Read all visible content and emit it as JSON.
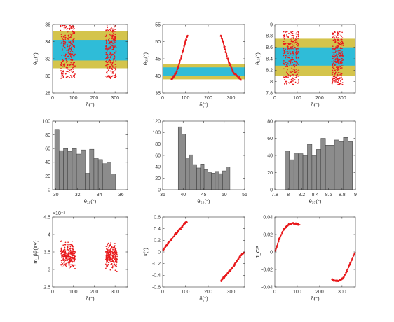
{
  "chart_data": [
    {
      "id": "p11",
      "type": "scatter",
      "xlabel": "δ(°)",
      "ylabel": "θ₁₂(°)",
      "xlim": [
        0,
        360
      ],
      "ylim": [
        28,
        36
      ],
      "xticks": [
        "0",
        "100",
        "200",
        "300"
      ],
      "yticks": [
        "28",
        "30",
        "32",
        "34",
        "36"
      ],
      "bands": [
        {
          "range": [
            30.9,
            35.2
          ],
          "color": "#d4c44c"
        },
        {
          "range": [
            31.8,
            34.2
          ],
          "color": "#2fbcd8"
        }
      ],
      "clusters": [
        {
          "x": [
            38,
            108
          ],
          "y": [
            29.7,
            36.4
          ]
        },
        {
          "x": [
            255,
            305
          ],
          "y": [
            29.7,
            36.4
          ]
        }
      ],
      "marker_color": "#e8191c"
    },
    {
      "id": "p12",
      "type": "scatter",
      "xlabel": "δ(°)",
      "ylabel": "θ₂₃(°)",
      "xlim": [
        0,
        360
      ],
      "ylim": [
        35,
        55
      ],
      "xticks": [
        "0",
        "100",
        "200",
        "300"
      ],
      "yticks": [
        "35",
        "40",
        "45",
        "50",
        "55"
      ],
      "bands": [
        {
          "range": [
            39.0,
            43.5
          ],
          "color": "#d4c44c"
        },
        {
          "range": [
            40.0,
            42.5
          ],
          "color": "#2fbcd8"
        }
      ],
      "curves": [
        {
          "x": [
            38,
            60,
            80,
            100,
            110
          ],
          "y": [
            38.8,
            41,
            45,
            50,
            51.8
          ]
        },
        {
          "x": [
            255,
            265,
            285,
            310,
            345
          ],
          "y": [
            51.8,
            50,
            45,
            41,
            38.8
          ]
        }
      ],
      "marker_color": "#e8191c"
    },
    {
      "id": "p13",
      "type": "scatter",
      "xlabel": "δ(°)",
      "ylabel": "θ₁₃(°)",
      "xlim": [
        0,
        360
      ],
      "ylim": [
        7.8,
        9.0
      ],
      "xticks": [
        "0",
        "100",
        "200",
        "300"
      ],
      "yticks": [
        "7.8",
        "8",
        "8.2",
        "8.4",
        "8.6",
        "8.8",
        "9"
      ],
      "bands": [
        {
          "range": [
            8.1,
            8.75
          ],
          "color": "#d4c44c"
        },
        {
          "range": [
            8.28,
            8.6
          ],
          "color": "#2fbcd8"
        }
      ],
      "clusters": [
        {
          "x": [
            38,
            108
          ],
          "y": [
            7.95,
            8.88
          ]
        },
        {
          "x": [
            255,
            305
          ],
          "y": [
            7.95,
            8.88
          ]
        }
      ],
      "marker_color": "#e8191c"
    },
    {
      "id": "p21",
      "type": "bar",
      "xlabel": "θ₁₂(°)",
      "xlim": [
        29.7,
        36.6
      ],
      "ylim": [
        0,
        100
      ],
      "xticks": [
        "30",
        "32",
        "34",
        "36"
      ],
      "yticks": [
        "0",
        "20",
        "40",
        "60",
        "80",
        "100"
      ],
      "bin_start": 29.9,
      "bin_width": 0.4,
      "values": [
        88,
        57,
        60,
        56,
        60,
        52,
        58,
        24,
        59,
        46,
        44,
        38,
        40,
        23
      ],
      "bar_color": "#8c8c8c"
    },
    {
      "id": "p22",
      "type": "bar",
      "xlabel": "θ₂₃(°)",
      "xlim": [
        35,
        55
      ],
      "ylim": [
        0,
        120
      ],
      "xticks": [
        "35",
        "40",
        "45",
        "50",
        "55"
      ],
      "yticks": [
        "0",
        "20",
        "40",
        "60",
        "80",
        "100",
        "120"
      ],
      "bin_start": 38.8,
      "bin_width": 0.9,
      "values": [
        110,
        97,
        56,
        61,
        44,
        38,
        45,
        35,
        30,
        29,
        32,
        28,
        33,
        40
      ],
      "bar_color": "#8c8c8c"
    },
    {
      "id": "p23",
      "type": "bar",
      "xlabel": "θ₁₃(°)",
      "xlim": [
        7.8,
        9.0
      ],
      "ylim": [
        0,
        80
      ],
      "xticks": [
        "7.8",
        "8",
        "8.2",
        "8.4",
        "8.6",
        "8.8",
        "9"
      ],
      "yticks": [
        "0",
        "20",
        "40",
        "60",
        "80"
      ],
      "bin_start": 7.95,
      "bin_width": 0.067,
      "values": [
        45,
        35,
        42,
        42,
        40,
        53,
        40,
        47,
        60,
        52,
        52,
        58,
        56,
        61,
        56
      ],
      "bar_color": "#8c8c8c"
    },
    {
      "id": "p31",
      "type": "scatter",
      "xlabel": "δ(°)",
      "ylabel": "m_ββ(eV)",
      "exponent": "×10⁻³",
      "xlim": [
        0,
        360
      ],
      "ylim": [
        2.5,
        4.5
      ],
      "xticks": [
        "0",
        "100",
        "200",
        "300"
      ],
      "yticks": [
        "2.5",
        "3",
        "3.5",
        "4",
        "4.5"
      ],
      "clusters": [
        {
          "x": [
            38,
            108
          ],
          "y": [
            2.9,
            3.95
          ],
          "center": 3.4
        },
        {
          "x": [
            255,
            310
          ],
          "y": [
            2.9,
            3.95
          ],
          "center": 3.4
        }
      ],
      "marker_color": "#e8191c"
    },
    {
      "id": "p32",
      "type": "scatter",
      "xlabel": "δ(°)",
      "ylabel": "κ(°)",
      "xlim": [
        0,
        360
      ],
      "ylim": [
        -0.6,
        0.6
      ],
      "xticks": [
        "0",
        "100",
        "200",
        "300"
      ],
      "yticks": [
        "-0.6",
        "-0.4",
        "-0.2",
        "0",
        "0.2",
        "0.4",
        "0.6"
      ],
      "curves": [
        {
          "x": [
            0,
            50,
            100,
            108
          ],
          "y": [
            0.02,
            0.28,
            0.5,
            0.52
          ]
        },
        {
          "x": [
            255,
            300,
            345,
            360
          ],
          "y": [
            -0.5,
            -0.3,
            -0.05,
            0.0
          ]
        }
      ],
      "marker_color": "#e8191c"
    },
    {
      "id": "p33",
      "type": "scatter",
      "xlabel": "δ(°)",
      "ylabel": "J_CP",
      "xlim": [
        0,
        360
      ],
      "ylim": [
        -0.04,
        0.04
      ],
      "xticks": [
        "0",
        "100",
        "200",
        "300"
      ],
      "yticks": [
        "-0.04",
        "-0.02",
        "0",
        "0.02",
        "0.04"
      ],
      "curves": [
        {
          "x": [
            0,
            20,
            40,
            60,
            80,
            100,
            110
          ],
          "y": [
            0.0,
            0.015,
            0.026,
            0.031,
            0.033,
            0.032,
            0.031
          ]
        },
        {
          "x": [
            255,
            265,
            285,
            305,
            325,
            345,
            360
          ],
          "y": [
            -0.031,
            -0.033,
            -0.033,
            -0.03,
            -0.02,
            -0.008,
            0.0
          ]
        }
      ],
      "marker_color": "#e8191c"
    }
  ]
}
